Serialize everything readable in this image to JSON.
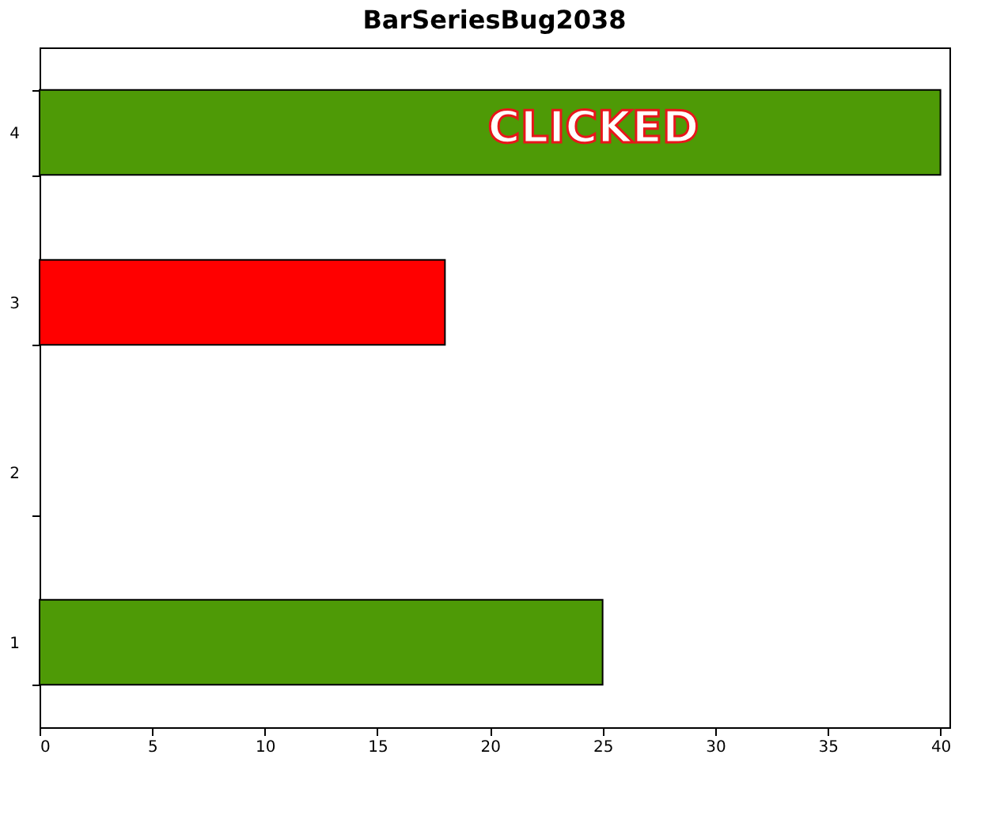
{
  "chart_data": {
    "type": "bar",
    "orientation": "horizontal",
    "title": "BarSeriesBug2038",
    "categories": [
      "4",
      "3",
      "2",
      "1"
    ],
    "values": [
      40,
      18,
      null,
      25
    ],
    "colors": [
      "#4e9a06",
      "#ff0000",
      "#4e9a06",
      "#4e9a06"
    ],
    "xlim": [
      0,
      40.4
    ],
    "xticks": [
      0,
      5,
      10,
      15,
      20,
      25,
      30,
      35,
      40
    ],
    "annotations": [
      "CLICKED"
    ],
    "grid": false
  }
}
